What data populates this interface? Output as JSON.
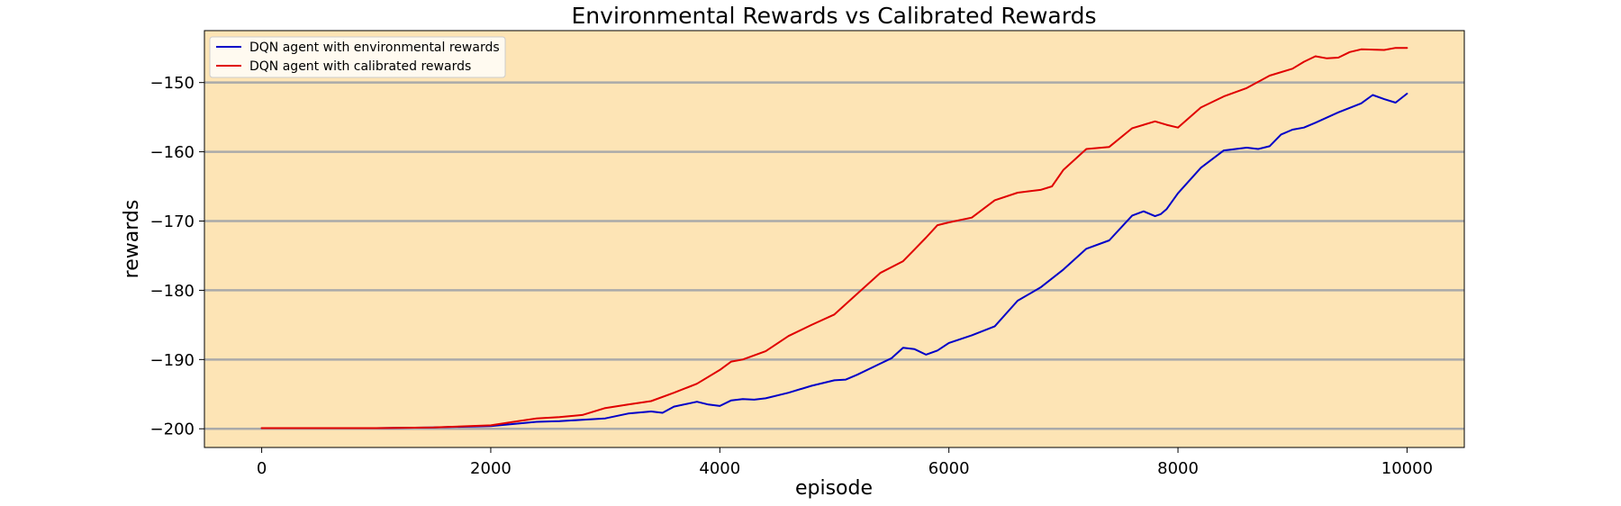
{
  "chart_data": {
    "type": "line",
    "title": "Environmental Rewards vs Calibrated Rewards",
    "xlabel": "episode",
    "ylabel": "rewards",
    "xlim": [
      -500,
      10500
    ],
    "ylim": [
      -202.7,
      -142.5
    ],
    "x_ticks": [
      0,
      2000,
      4000,
      6000,
      8000,
      10000
    ],
    "x_tick_labels": [
      "0",
      "2000",
      "4000",
      "6000",
      "8000",
      "10000"
    ],
    "y_ticks": [
      -200,
      -190,
      -180,
      -170,
      -160,
      -150
    ],
    "y_tick_labels": [
      "−200",
      "−190",
      "−180",
      "−170",
      "−160",
      "−150"
    ],
    "grid": "horizontal",
    "legend_position": "top-left",
    "plot_background": "#fde4b5",
    "grid_color": "#aaaaaa",
    "series": [
      {
        "name": "DQN agent with environmental rewards",
        "color": "#0000c8",
        "x": [
          0,
          500,
          1000,
          1500,
          2000,
          2200,
          2400,
          2600,
          2800,
          3000,
          3200,
          3400,
          3500,
          3600,
          3800,
          3900,
          4000,
          4100,
          4200,
          4300,
          4400,
          4600,
          4800,
          5000,
          5100,
          5200,
          5400,
          5500,
          5600,
          5700,
          5800,
          5900,
          6000,
          6200,
          6400,
          6600,
          6800,
          7000,
          7200,
          7400,
          7600,
          7700,
          7800,
          7850,
          7900,
          8000,
          8200,
          8400,
          8600,
          8700,
          8800,
          8900,
          9000,
          9100,
          9200,
          9400,
          9600,
          9700,
          9800,
          9900,
          10000
        ],
        "y": [
          -199.9,
          -199.9,
          -199.9,
          -199.8,
          -199.6,
          -199.3,
          -199.0,
          -198.9,
          -198.7,
          -198.5,
          -197.8,
          -197.5,
          -197.7,
          -196.8,
          -196.1,
          -196.5,
          -196.7,
          -195.9,
          -195.7,
          -195.8,
          -195.6,
          -194.8,
          -193.8,
          -193.0,
          -192.9,
          -192.2,
          -190.6,
          -189.8,
          -188.3,
          -188.5,
          -189.3,
          -188.7,
          -187.6,
          -186.5,
          -185.2,
          -181.5,
          -179.6,
          -177.0,
          -174.0,
          -172.8,
          -169.2,
          -168.6,
          -169.3,
          -169.0,
          -168.3,
          -166.0,
          -162.3,
          -159.8,
          -159.4,
          -159.6,
          -159.2,
          -157.5,
          -156.8,
          -156.5,
          -155.8,
          -154.3,
          -153.0,
          -151.8,
          -152.4,
          -152.9,
          -151.6
        ]
      },
      {
        "name": "DQN agent with calibrated rewards",
        "color": "#e00000",
        "x": [
          0,
          500,
          1000,
          1500,
          2000,
          2200,
          2400,
          2600,
          2800,
          3000,
          3200,
          3400,
          3600,
          3800,
          4000,
          4100,
          4200,
          4400,
          4600,
          4800,
          5000,
          5200,
          5400,
          5600,
          5800,
          5900,
          6000,
          6200,
          6400,
          6600,
          6800,
          6900,
          7000,
          7200,
          7400,
          7600,
          7800,
          7900,
          8000,
          8200,
          8400,
          8600,
          8800,
          9000,
          9100,
          9200,
          9300,
          9400,
          9500,
          9600,
          9800,
          9900,
          10000
        ],
        "y": [
          -199.9,
          -199.9,
          -199.9,
          -199.8,
          -199.5,
          -199.0,
          -198.5,
          -198.3,
          -198.0,
          -197.0,
          -196.5,
          -196.0,
          -194.8,
          -193.5,
          -191.5,
          -190.3,
          -190.0,
          -188.8,
          -186.6,
          -185.0,
          -183.5,
          -180.5,
          -177.5,
          -175.8,
          -172.4,
          -170.6,
          -170.2,
          -169.5,
          -167.0,
          -165.9,
          -165.5,
          -165.0,
          -162.6,
          -159.6,
          -159.3,
          -156.6,
          -155.6,
          -156.1,
          -156.5,
          -153.6,
          -152.0,
          -150.8,
          -149.0,
          -148.0,
          -147.0,
          -146.2,
          -146.5,
          -146.4,
          -145.6,
          -145.2,
          -145.3,
          -145.0,
          -145.0
        ]
      }
    ]
  }
}
